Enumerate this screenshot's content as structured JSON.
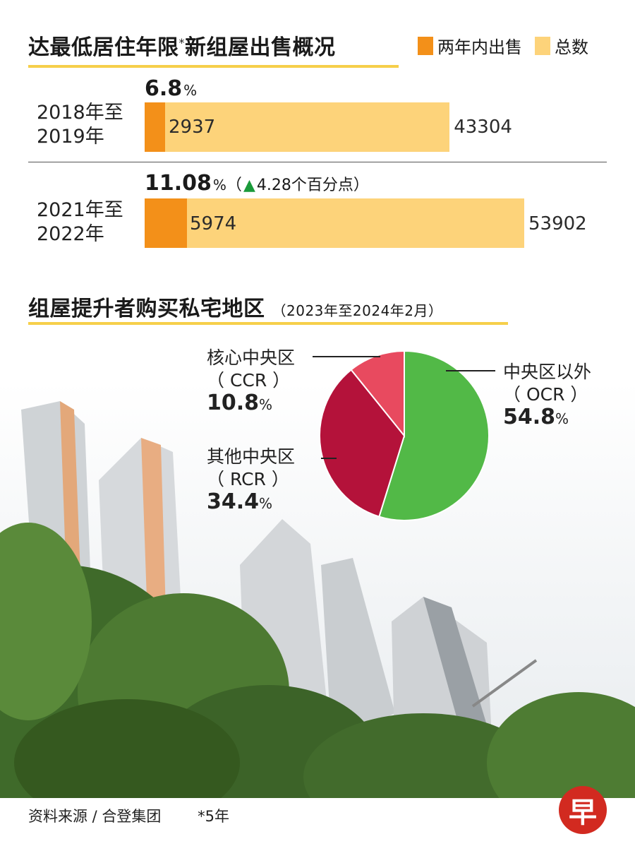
{
  "chart_data": [
    {
      "type": "bar",
      "title": "达最低居住年限",
      "title_sup": "*",
      "title_rest": "新组屋出售概况",
      "series": [
        {
          "name": "两年内出售",
          "values": [
            2937,
            5974
          ],
          "color": "#f39019"
        },
        {
          "name": "总数",
          "values": [
            43304,
            53902
          ],
          "color": "#fdd37a"
        }
      ],
      "categories": [
        "2018年至\n2019年",
        "2021年至\n2022年"
      ],
      "percentages": [
        {
          "value": "6.8",
          "unit": "%",
          "note_open": "",
          "note_change": "",
          "note_close": ""
        },
        {
          "value": "11.08",
          "unit": "%",
          "note_open": "（",
          "note_change": "4.28个百分点",
          "note_close": "）"
        }
      ],
      "xlim": [
        0,
        53902
      ]
    },
    {
      "type": "pie",
      "title": "组屋提升者购买私宅地区",
      "subtitle": "（2023年至2024年2月）",
      "slices": [
        {
          "name": "中央区以外",
          "code": "（ OCR ）",
          "value": 54.8,
          "value_label": "54.8",
          "unit": "%",
          "color": "#52b947"
        },
        {
          "name": "其他中央区",
          "code": "（ RCR ）",
          "value": 34.4,
          "value_label": "34.4",
          "unit": "%",
          "color": "#b4123a"
        },
        {
          "name": "核心中央区",
          "code": "（ CCR ）",
          "value": 10.8,
          "value_label": "10.8",
          "unit": "%",
          "color": "#e84a5f"
        }
      ]
    }
  ],
  "footer": {
    "source": "资料来源 / 合登集团",
    "note": "*5年",
    "logo_char": "早"
  }
}
